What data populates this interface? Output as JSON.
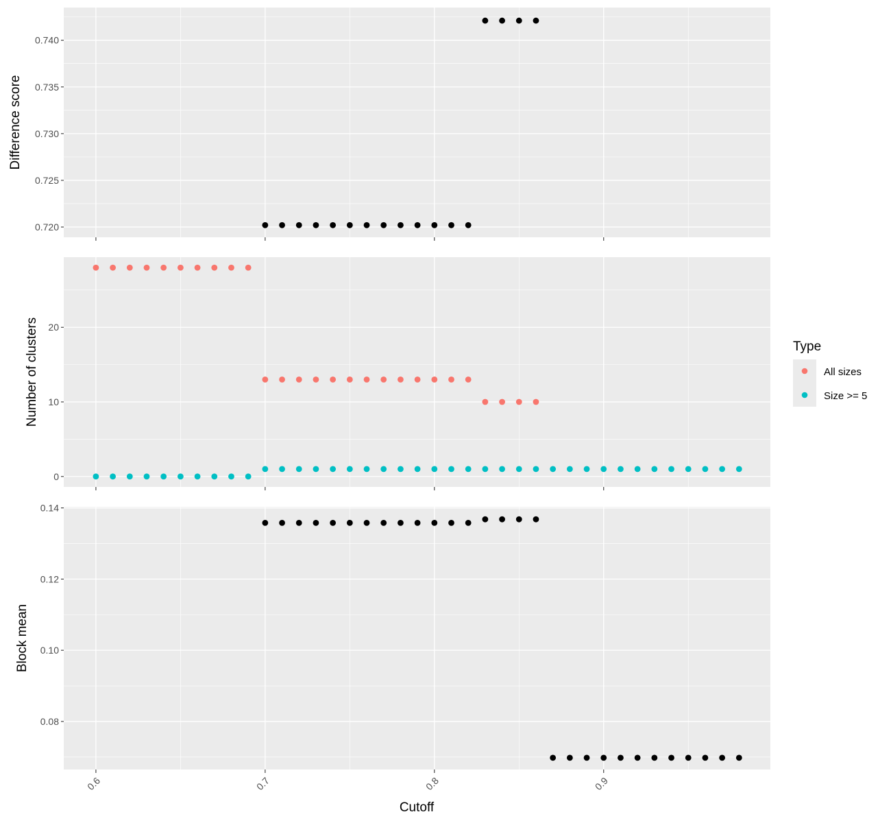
{
  "chart_data": {
    "type": "scatter",
    "xlabel": "Cutoff",
    "x_ticks": [
      "0.6",
      "0.7",
      "0.8",
      "0.9"
    ],
    "xlim": [
      0.581,
      0.9985
    ],
    "grid": true,
    "legend": {
      "title": "Type",
      "position": "right",
      "entries": [
        {
          "label": "All sizes",
          "color": "#F8766D"
        },
        {
          "label": "Size >= 5",
          "color": "#00BFC4"
        }
      ]
    },
    "panels": [
      {
        "ylabel": "Difference score",
        "ylim": [
          0.7189,
          0.7435
        ],
        "y_ticks": [
          0.72,
          0.725,
          0.73,
          0.735,
          0.74
        ],
        "y_tick_labels": [
          "0.720",
          "0.725",
          "0.730",
          "0.735",
          "0.740"
        ],
        "series": [
          {
            "color": "#000000",
            "points": [
              [
                0.7,
                0.7202
              ],
              [
                0.71,
                0.7202
              ],
              [
                0.72,
                0.7202
              ],
              [
                0.73,
                0.7202
              ],
              [
                0.74,
                0.7202
              ],
              [
                0.75,
                0.7202
              ],
              [
                0.76,
                0.7202
              ],
              [
                0.77,
                0.7202
              ],
              [
                0.78,
                0.7202
              ],
              [
                0.79,
                0.7202
              ],
              [
                0.8,
                0.7202
              ],
              [
                0.81,
                0.7202
              ],
              [
                0.82,
                0.7202
              ],
              [
                0.83,
                0.7421
              ],
              [
                0.84,
                0.7421
              ],
              [
                0.85,
                0.7421
              ],
              [
                0.86,
                0.7421
              ]
            ]
          }
        ]
      },
      {
        "ylabel": "Number of clusters",
        "ylim": [
          -1.4,
          29.4
        ],
        "y_ticks": [
          0,
          10,
          20
        ],
        "y_tick_labels": [
          "0",
          "10",
          "20"
        ],
        "series": [
          {
            "name": "All sizes",
            "color": "#F8766D",
            "points": [
              [
                0.6,
                28
              ],
              [
                0.61,
                28
              ],
              [
                0.62,
                28
              ],
              [
                0.63,
                28
              ],
              [
                0.64,
                28
              ],
              [
                0.65,
                28
              ],
              [
                0.66,
                28
              ],
              [
                0.67,
                28
              ],
              [
                0.68,
                28
              ],
              [
                0.69,
                28
              ],
              [
                0.7,
                13
              ],
              [
                0.71,
                13
              ],
              [
                0.72,
                13
              ],
              [
                0.73,
                13
              ],
              [
                0.74,
                13
              ],
              [
                0.75,
                13
              ],
              [
                0.76,
                13
              ],
              [
                0.77,
                13
              ],
              [
                0.78,
                13
              ],
              [
                0.79,
                13
              ],
              [
                0.8,
                13
              ],
              [
                0.81,
                13
              ],
              [
                0.82,
                13
              ],
              [
                0.83,
                10
              ],
              [
                0.84,
                10
              ],
              [
                0.85,
                10
              ],
              [
                0.86,
                10
              ]
            ]
          },
          {
            "name": "Size >= 5",
            "color": "#00BFC4",
            "points": [
              [
                0.6,
                0
              ],
              [
                0.61,
                0
              ],
              [
                0.62,
                0
              ],
              [
                0.63,
                0
              ],
              [
                0.64,
                0
              ],
              [
                0.65,
                0
              ],
              [
                0.66,
                0
              ],
              [
                0.67,
                0
              ],
              [
                0.68,
                0
              ],
              [
                0.69,
                0
              ],
              [
                0.7,
                1
              ],
              [
                0.71,
                1
              ],
              [
                0.72,
                1
              ],
              [
                0.73,
                1
              ],
              [
                0.74,
                1
              ],
              [
                0.75,
                1
              ],
              [
                0.76,
                1
              ],
              [
                0.77,
                1
              ],
              [
                0.78,
                1
              ],
              [
                0.79,
                1
              ],
              [
                0.8,
                1
              ],
              [
                0.81,
                1
              ],
              [
                0.82,
                1
              ],
              [
                0.83,
                1
              ],
              [
                0.84,
                1
              ],
              [
                0.85,
                1
              ],
              [
                0.86,
                1
              ],
              [
                0.87,
                1
              ],
              [
                0.88,
                1
              ],
              [
                0.89,
                1
              ],
              [
                0.9,
                1
              ],
              [
                0.91,
                1
              ],
              [
                0.92,
                1
              ],
              [
                0.93,
                1
              ],
              [
                0.94,
                1
              ],
              [
                0.95,
                1
              ],
              [
                0.96,
                1
              ],
              [
                0.97,
                1
              ],
              [
                0.98,
                1
              ]
            ]
          }
        ]
      },
      {
        "ylabel": "Block mean",
        "ylim": [
          0.0665,
          0.1403
        ],
        "y_ticks": [
          0.08,
          0.1,
          0.12,
          0.14
        ],
        "y_tick_labels": [
          "0.08",
          "0.10",
          "0.12",
          "0.14"
        ],
        "series": [
          {
            "color": "#000000",
            "points": [
              [
                0.7,
                0.1358
              ],
              [
                0.71,
                0.1358
              ],
              [
                0.72,
                0.1358
              ],
              [
                0.73,
                0.1358
              ],
              [
                0.74,
                0.1358
              ],
              [
                0.75,
                0.1358
              ],
              [
                0.76,
                0.1358
              ],
              [
                0.77,
                0.1358
              ],
              [
                0.78,
                0.1358
              ],
              [
                0.79,
                0.1358
              ],
              [
                0.8,
                0.1358
              ],
              [
                0.81,
                0.1358
              ],
              [
                0.82,
                0.1358
              ],
              [
                0.83,
                0.1368
              ],
              [
                0.84,
                0.1368
              ],
              [
                0.85,
                0.1368
              ],
              [
                0.86,
                0.1368
              ],
              [
                0.87,
                0.0698
              ],
              [
                0.88,
                0.0698
              ],
              [
                0.89,
                0.0698
              ],
              [
                0.9,
                0.0698
              ],
              [
                0.91,
                0.0698
              ],
              [
                0.92,
                0.0698
              ],
              [
                0.93,
                0.0698
              ],
              [
                0.94,
                0.0698
              ],
              [
                0.95,
                0.0698
              ],
              [
                0.96,
                0.0698
              ],
              [
                0.97,
                0.0698
              ],
              [
                0.98,
                0.0698
              ]
            ]
          }
        ]
      }
    ]
  }
}
